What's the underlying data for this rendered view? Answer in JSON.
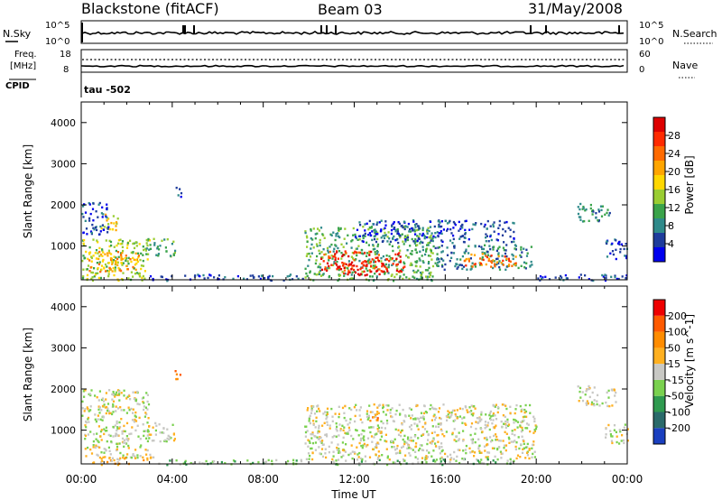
{
  "header": {
    "station": "Blackstone (fitACF)",
    "beam": "Beam 03",
    "date": "31/May/2008"
  },
  "left_labels": {
    "nsky": "N.Sky",
    "freq_line1": "Freq.",
    "freq_line2": "[MHz]",
    "cpid": "CPID"
  },
  "right_labels": {
    "nsearch": "N.Search",
    "nave": "Nave"
  },
  "tick_labels": {
    "nsky_top": "10^5",
    "nsky_bottom": "10^0",
    "nsearch_top": "10^5",
    "nsearch_bottom": "10^0",
    "freq_top": "18",
    "freq_bottom": "8",
    "nave_top": "60",
    "nave_bottom": "0"
  },
  "cpid_text": "tau -502",
  "chart_data": [
    {
      "type": "heatmap",
      "panel": "power",
      "ylabel": "Slant Range [km]",
      "xlabel": "",
      "ylim": [
        180,
        4500
      ],
      "yticks": [
        1000,
        2000,
        3000,
        4000
      ],
      "xlim_hours": [
        0,
        24
      ],
      "x_tick_labels": [
        "00:00",
        "04:00",
        "08:00",
        "12:00",
        "16:00",
        "20:00",
        "00:00"
      ],
      "colorbar": {
        "label": "Power [dB]",
        "ticks": [
          "4",
          "8",
          "12",
          "16",
          "20",
          "24",
          "28"
        ],
        "colors": [
          "#0000ee",
          "#1e3c9c",
          "#2f8a8a",
          "#3aa34a",
          "#9acd32",
          "#ffd700",
          "#ffa500",
          "#ff6a00",
          "#ff2a00",
          "#dd0000"
        ]
      },
      "regions": [
        {
          "t0": 0.0,
          "t1": 3.0,
          "r0": 180,
          "r1": 1200,
          "level": 4
        },
        {
          "t0": 0.3,
          "t1": 2.5,
          "r0": 400,
          "r1": 900,
          "level": 6
        },
        {
          "t0": 0.8,
          "t1": 1.6,
          "r0": 1400,
          "r1": 1800,
          "level": 5
        },
        {
          "t0": 0.0,
          "t1": 1.2,
          "r0": 1300,
          "r1": 2100,
          "level": 1
        },
        {
          "t0": 2.8,
          "t1": 4.1,
          "r0": 750,
          "r1": 1200,
          "level": 3
        },
        {
          "t0": 4.1,
          "t1": 4.4,
          "r0": 2200,
          "r1": 2500,
          "level": 1
        },
        {
          "t0": 3.0,
          "t1": 9.8,
          "r0": 180,
          "r1": 330,
          "level": 1
        },
        {
          "t0": 9.8,
          "t1": 15.5,
          "r0": 180,
          "r1": 1500,
          "level": 3
        },
        {
          "t0": 10.5,
          "t1": 14.2,
          "r0": 400,
          "r1": 900,
          "level": 8
        },
        {
          "t0": 11.5,
          "t1": 13.5,
          "r0": 300,
          "r1": 600,
          "level": 9
        },
        {
          "t0": 12.0,
          "t1": 19.0,
          "r0": 1100,
          "r1": 1650,
          "level": 1
        },
        {
          "t0": 15.5,
          "t1": 19.8,
          "r0": 450,
          "r1": 1050,
          "level": 2
        },
        {
          "t0": 16.8,
          "t1": 19.2,
          "r0": 500,
          "r1": 850,
          "level": 7
        },
        {
          "t0": 19.8,
          "t1": 24.0,
          "r0": 180,
          "r1": 330,
          "level": 1
        },
        {
          "t0": 21.8,
          "t1": 23.3,
          "r0": 1600,
          "r1": 2050,
          "level": 2
        },
        {
          "t0": 23.0,
          "t1": 24.0,
          "r0": 700,
          "r1": 1200,
          "level": 1
        }
      ]
    },
    {
      "type": "heatmap",
      "panel": "velocity",
      "ylabel": "Slant Range [km]",
      "xlabel": "Time UT",
      "ylim": [
        180,
        4500
      ],
      "yticks": [
        1000,
        2000,
        3000,
        4000
      ],
      "xlim_hours": [
        0,
        24
      ],
      "x_tick_labels": [
        "00:00",
        "04:00",
        "08:00",
        "12:00",
        "16:00",
        "20:00",
        "00:00"
      ],
      "colorbar": {
        "label": "Velocity [m s^-1]",
        "ticks": [
          "200",
          "100",
          "50",
          "15",
          "-15",
          "-50",
          "-100",
          "-200"
        ],
        "colors": [
          "#1a3fbf",
          "#2a6a6a",
          "#2f9a4f",
          "#7ad14f",
          "#c8c8c4",
          "#ffb020",
          "#ff8c00",
          "#ff5a00",
          "#ee0000"
        ]
      },
      "regions": [
        {
          "t0": 0.0,
          "t1": 3.0,
          "r0": 350,
          "r1": 2000,
          "level": 4
        },
        {
          "t0": 2.8,
          "t1": 4.1,
          "r0": 750,
          "r1": 1200,
          "level": 4
        },
        {
          "t0": 4.1,
          "t1": 4.4,
          "r0": 2200,
          "r1": 2500,
          "level": 6
        },
        {
          "t0": 0.3,
          "t1": 3.2,
          "r0": 180,
          "r1": 380,
          "level": 5
        },
        {
          "t0": 3.0,
          "t1": 9.8,
          "r0": 180,
          "r1": 300,
          "level": 3
        },
        {
          "t0": 9.8,
          "t1": 20.0,
          "r0": 300,
          "r1": 1650,
          "level": 4
        },
        {
          "t0": 11.0,
          "t1": 19.0,
          "r0": 180,
          "r1": 320,
          "level": 3
        },
        {
          "t0": 21.8,
          "t1": 23.5,
          "r0": 1600,
          "r1": 2100,
          "level": 4
        },
        {
          "t0": 23.0,
          "t1": 24.0,
          "r0": 700,
          "r1": 1200,
          "level": 4
        },
        {
          "t0": 12.5,
          "t1": 13.0,
          "r0": 1200,
          "r1": 1400,
          "level": 6
        }
      ]
    }
  ]
}
